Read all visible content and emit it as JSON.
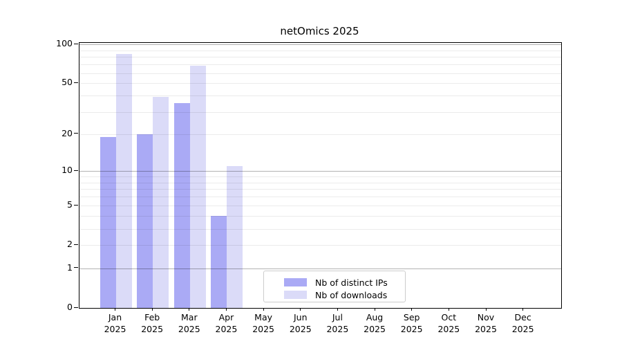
{
  "chart_data": {
    "type": "bar",
    "title": "netOmics 2025",
    "months": [
      "Jan",
      "Feb",
      "Mar",
      "Apr",
      "May",
      "Jun",
      "Jul",
      "Aug",
      "Sep",
      "Oct",
      "Nov",
      "Dec"
    ],
    "year": "2025",
    "series": [
      {
        "name": "Nb of distinct IPs",
        "color": "#aaaaf5",
        "values": [
          19,
          20,
          35,
          4,
          0,
          0,
          0,
          0,
          0,
          0,
          0,
          0
        ]
      },
      {
        "name": "Nb of downloads",
        "color": "#dbdbf8",
        "values": [
          84,
          39,
          68,
          11,
          0,
          0,
          0,
          0,
          0,
          0,
          0,
          0
        ]
      }
    ],
    "y_axis": {
      "scale": "log1p",
      "ylim": [
        0,
        100
      ],
      "tick_labels": [
        0,
        1,
        2,
        5,
        10,
        20,
        50,
        100
      ],
      "major_gridlines": [
        1,
        10,
        100
      ],
      "minor_gridlines": [
        2,
        3,
        4,
        5,
        6,
        7,
        8,
        9,
        20,
        30,
        40,
        50,
        60,
        70,
        80,
        90
      ]
    },
    "grid": "on",
    "colors": {
      "major_grid": "rgba(0,0,0,0.30)",
      "minor_grid": "rgba(0,0,0,0.08)",
      "axis": "#000000"
    },
    "legend": {
      "position": "lower-center"
    }
  }
}
